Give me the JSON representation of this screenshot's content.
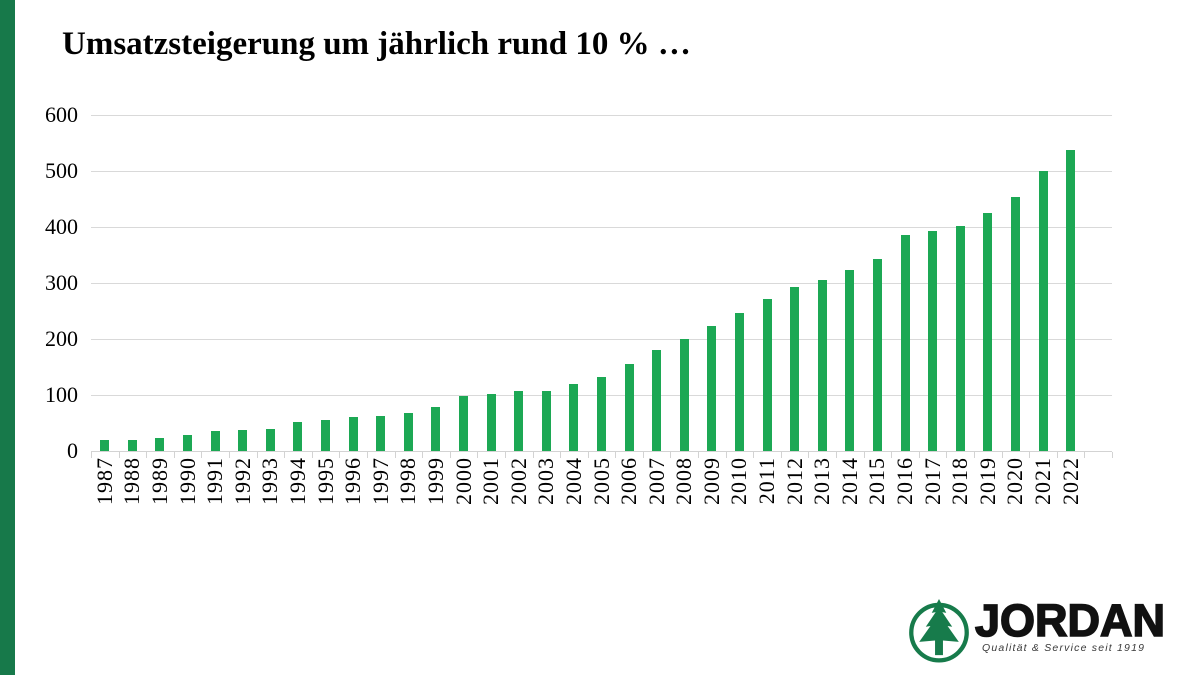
{
  "slide": {
    "title": "Umsatzsteigerung um jährlich rund 10 % …",
    "background_color": "#ffffff",
    "accent_stripe_color": "#17794A"
  },
  "chart_data": {
    "type": "bar",
    "title": "Umsatzsteigerung um jährlich rund 10 % …",
    "categories": [
      "1987",
      "1988",
      "1989",
      "1990",
      "1991",
      "1992",
      "1993",
      "1994",
      "1995",
      "1996",
      "1997",
      "1998",
      "1999",
      "2000",
      "2001",
      "2002",
      "2003",
      "2004",
      "2005",
      "2006",
      "2007",
      "2008",
      "2009",
      "2010",
      "2011",
      "2012",
      "2013",
      "2014",
      "2015",
      "2016",
      "2017",
      "2018",
      "2019",
      "2020",
      "2021",
      "2022"
    ],
    "values": [
      20,
      20,
      23,
      29,
      36,
      37,
      40,
      51,
      56,
      60,
      63,
      68,
      78,
      99,
      101,
      107,
      108,
      120,
      133,
      155,
      180,
      200,
      224,
      246,
      272,
      293,
      305,
      324,
      342,
      385,
      392,
      401,
      425,
      453,
      500,
      538
    ],
    "xlabel": "",
    "ylabel": "",
    "ylim": [
      0,
      600
    ],
    "yticks": [
      0,
      100,
      200,
      300,
      400,
      500,
      600
    ],
    "grid": true,
    "legend": false,
    "x_label_rotation_deg": 90,
    "bar_color": "#1CA854",
    "gridline_color": "#d9d9d9",
    "axis_color": "#d3d3d3",
    "label_color": "#000000"
  },
  "logo": {
    "brand": "JORDAN",
    "tagline": "Qualität & Service seit 1919",
    "icon": "fir-tree-icon",
    "icon_color": "#177B4B",
    "brand_color": "#111111"
  }
}
